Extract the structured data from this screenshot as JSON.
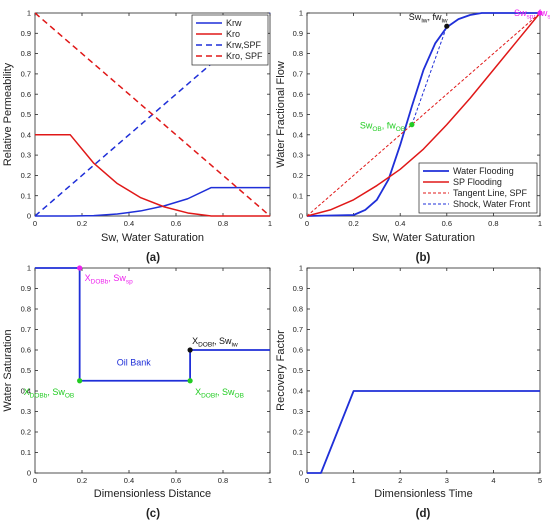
{
  "chart_data": [
    {
      "id": "a",
      "type": "line",
      "caption": "(a)",
      "xlabel": "Sw, Water Saturation",
      "ylabel": "Relative Permeability",
      "xlim": [
        0,
        1
      ],
      "ylim": [
        0,
        1
      ],
      "xticks": [
        "0",
        "0.2",
        "0.4",
        "0.6",
        "0.8",
        "1"
      ],
      "xtick_values": [
        0,
        0.2,
        0.4,
        0.6,
        0.8,
        1
      ],
      "yticks": [
        "0",
        "0.1",
        "0.2",
        "0.3",
        "0.4",
        "0.5",
        "0.6",
        "0.7",
        "0.8",
        "0.9",
        "1"
      ],
      "ytick_values": [
        0,
        0.1,
        0.2,
        0.3,
        0.4,
        0.5,
        0.6,
        0.7,
        0.8,
        0.9,
        1
      ],
      "legend_position": "top-right",
      "series": [
        {
          "name": "Krw",
          "color": "#1f2fd8",
          "dash": "",
          "x": [
            0,
            0.15,
            0.25,
            0.35,
            0.45,
            0.55,
            0.65,
            0.75,
            0.85,
            1
          ],
          "y": [
            0,
            0,
            0.002,
            0.01,
            0.025,
            0.05,
            0.085,
            0.14,
            0.14,
            0.14
          ]
        },
        {
          "name": "Kro",
          "color": "#e01818",
          "dash": "",
          "x": [
            0,
            0.15,
            0.25,
            0.35,
            0.45,
            0.55,
            0.65,
            0.75,
            0.85,
            1
          ],
          "y": [
            0.4,
            0.4,
            0.26,
            0.16,
            0.09,
            0.045,
            0.015,
            0,
            0,
            0
          ]
        },
        {
          "name": "Krw,SPF",
          "color": "#1f2fd8",
          "dash": "6,4",
          "x": [
            0,
            1
          ],
          "y": [
            0,
            1
          ]
        },
        {
          "name": "Kro, SPF",
          "color": "#e01818",
          "dash": "6,4",
          "x": [
            0,
            1
          ],
          "y": [
            1,
            0
          ]
        }
      ]
    },
    {
      "id": "b",
      "type": "line",
      "caption": "(b)",
      "xlabel": "Sw, Water Saturation",
      "ylabel": "Water Fractional Flow",
      "xlim": [
        0,
        1
      ],
      "ylim": [
        0,
        1
      ],
      "xticks": [
        "0",
        "0.2",
        "0.4",
        "0.6",
        "0.8",
        "1"
      ],
      "xtick_values": [
        0,
        0.2,
        0.4,
        0.6,
        0.8,
        1
      ],
      "yticks": [
        "0",
        "0.1",
        "0.2",
        "0.3",
        "0.4",
        "0.5",
        "0.6",
        "0.7",
        "0.8",
        "0.9",
        "1"
      ],
      "ytick_values": [
        0,
        0.1,
        0.2,
        0.3,
        0.4,
        0.5,
        0.6,
        0.7,
        0.8,
        0.9,
        1
      ],
      "legend_position": "bottom-right",
      "series": [
        {
          "name": "Water Flooding",
          "color": "#1f2fd8",
          "dash": "",
          "width": 1.8,
          "x": [
            0,
            0.2,
            0.25,
            0.3,
            0.35,
            0.4,
            0.45,
            0.5,
            0.55,
            0.6,
            0.65,
            0.7,
            0.75,
            0.8,
            1
          ],
          "y": [
            0,
            0.005,
            0.03,
            0.08,
            0.18,
            0.35,
            0.54,
            0.72,
            0.85,
            0.93,
            0.97,
            0.99,
            1,
            1,
            1
          ]
        },
        {
          "name": "SP Flooding",
          "color": "#e01818",
          "dash": "",
          "width": 1.5,
          "x": [
            0,
            0.1,
            0.2,
            0.3,
            0.4,
            0.5,
            0.6,
            0.7,
            0.8,
            0.9,
            1
          ],
          "y": [
            0,
            0.03,
            0.08,
            0.15,
            0.23,
            0.33,
            0.45,
            0.58,
            0.72,
            0.86,
            1
          ]
        },
        {
          "name": "Tangent Line, SPF",
          "color": "#e01818",
          "dash": "3,2",
          "width": 1,
          "x": [
            0,
            1
          ],
          "y": [
            0,
            1
          ]
        },
        {
          "name": "Shock, Water Front",
          "color": "#1f2fd8",
          "dash": "3,2",
          "width": 1,
          "x": [
            0.45,
            0.6
          ],
          "y": [
            0.45,
            0.935
          ]
        }
      ],
      "points": [
        {
          "x": 0.6,
          "y": 0.935,
          "color": "#111111",
          "label": "Sw",
          "sub": "iw",
          "label2": ", fw",
          "sub2": "iw",
          "label_color": "#111111"
        },
        {
          "x": 0.45,
          "y": 0.45,
          "color": "#22cc22",
          "label": "Sw",
          "sub": "OB",
          "label2": ", fw",
          "sub2": "OB",
          "label_color": "#22cc22"
        },
        {
          "x": 1,
          "y": 1,
          "color": "#ee22ee",
          "label": "Sw",
          "sub": "sp",
          "label2": ", fw",
          "sub2": "sp",
          "label_color": "#ee22ee"
        }
      ]
    },
    {
      "id": "c",
      "type": "line",
      "caption": "(c)",
      "xlabel": "Dimensionless Distance",
      "ylabel": "Water Saturation",
      "xlim": [
        0,
        1
      ],
      "ylim": [
        0,
        1
      ],
      "xticks": [
        "0",
        "0.2",
        "0.4",
        "0.6",
        "0.8",
        "1"
      ],
      "xtick_values": [
        0,
        0.2,
        0.4,
        0.6,
        0.8,
        1
      ],
      "yticks": [
        "0",
        "0.1",
        "0.2",
        "0.3",
        "0.4",
        "0.5",
        "0.6",
        "0.7",
        "0.8",
        "0.9",
        "1"
      ],
      "ytick_values": [
        0,
        0.1,
        0.2,
        0.3,
        0.4,
        0.5,
        0.6,
        0.7,
        0.8,
        0.9,
        1
      ],
      "series": [
        {
          "name": "",
          "color": "#1f2fd8",
          "dash": "",
          "width": 1.8,
          "x": [
            0,
            0.19,
            0.19,
            0.66,
            0.66,
            1
          ],
          "y": [
            1,
            1,
            0.45,
            0.45,
            0.6,
            0.6
          ]
        }
      ],
      "annotation": "Oil Bank",
      "points": [
        {
          "x": 0.19,
          "y": 1,
          "color": "#ee22ee",
          "label": "X",
          "sub": "DOBb",
          "label2": ", Sw",
          "sub2": "sp",
          "label_color": "#ee22ee"
        },
        {
          "x": 0.19,
          "y": 0.45,
          "color": "#22cc22",
          "label": "X",
          "sub": "DOBb",
          "label2": ", Sw",
          "sub2": "OB",
          "label_color": "#22cc22"
        },
        {
          "x": 0.66,
          "y": 0.45,
          "color": "#22cc22",
          "label": "X",
          "sub": "DOBf",
          "label2": ", Sw",
          "sub2": "OB",
          "label_color": "#22cc22"
        },
        {
          "x": 0.66,
          "y": 0.6,
          "color": "#111111",
          "label": "X",
          "sub": "DOBf",
          "label2": ", Sw",
          "sub2": "iw",
          "label_color": "#111111"
        }
      ]
    },
    {
      "id": "d",
      "type": "line",
      "caption": "(d)",
      "xlabel": "Dimensionless Time",
      "ylabel": "Recovery Factor",
      "xlim": [
        0,
        5
      ],
      "ylim": [
        0,
        1
      ],
      "xticks": [
        "0",
        "1",
        "2",
        "3",
        "4",
        "5"
      ],
      "xtick_values": [
        0,
        1,
        2,
        3,
        4,
        5
      ],
      "yticks": [
        "0",
        "0.1",
        "0.2",
        "0.3",
        "0.4",
        "0.5",
        "0.6",
        "0.7",
        "0.8",
        "0.9",
        "1"
      ],
      "ytick_values": [
        0,
        0.1,
        0.2,
        0.3,
        0.4,
        0.5,
        0.6,
        0.7,
        0.8,
        0.9,
        1
      ],
      "series": [
        {
          "name": "",
          "color": "#1f2fd8",
          "dash": "",
          "width": 1.8,
          "x": [
            0,
            0.3,
            1,
            5
          ],
          "y": [
            0,
            0,
            0.4,
            0.4
          ]
        }
      ]
    }
  ]
}
